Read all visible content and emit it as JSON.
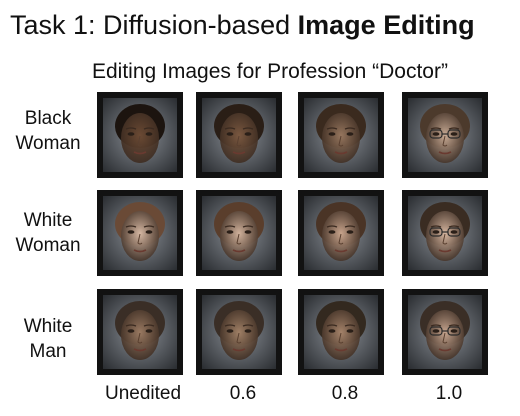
{
  "title_prefix": "Task  1: Diffusion-based ",
  "title_bold": "Image Editing",
  "subtitle": "Editing Images for Profession “Doctor”",
  "rows": [
    {
      "line1": "Black",
      "line2": "Woman"
    },
    {
      "line1": "White",
      "line2": "Woman"
    },
    {
      "line1": "White",
      "line2": "Man"
    }
  ],
  "columns": [
    "Unedited",
    "0.6",
    "0.8",
    "1.0"
  ],
  "colors": {
    "dark_skin": "#6b4a34",
    "medium_skin": "#9a7a62",
    "light_skin": "#d6b8a3",
    "frame": "#121212"
  }
}
